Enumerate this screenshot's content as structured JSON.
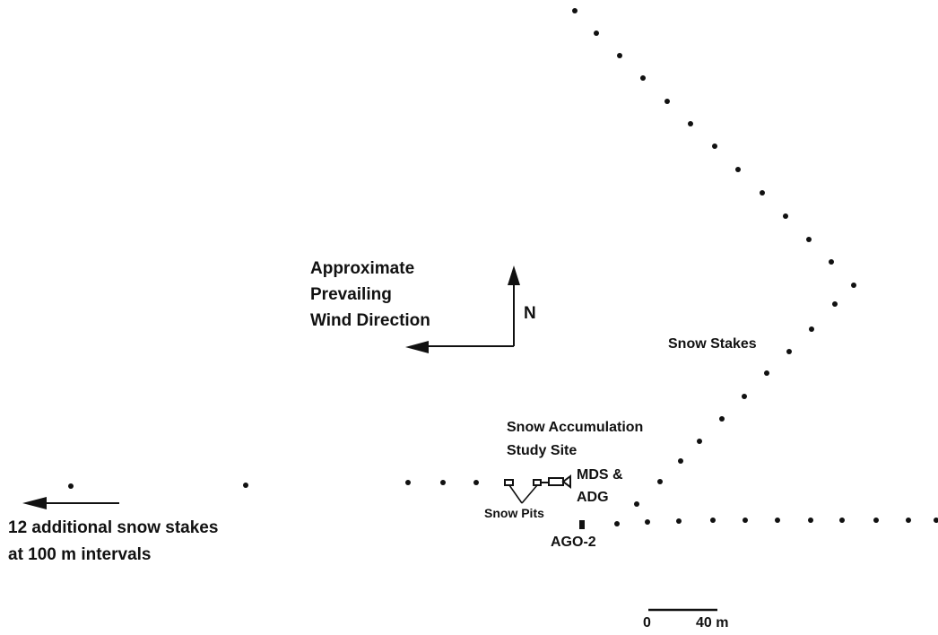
{
  "labels": {
    "wind_line1": "Approximate",
    "wind_line2": "Prevailing",
    "wind_line3": "Wind Direction",
    "north": "N",
    "snow_stakes": "Snow Stakes",
    "study_site_line1": "Snow Accumulation",
    "study_site_line2": "Study Site",
    "mds_line1": "MDS &",
    "mds_line2": "ADG",
    "snow_pits": "Snow Pits",
    "ago2": "AGO-2",
    "additional_line1": "12 additional snow stakes",
    "additional_line2": "at 100 m intervals",
    "scale_zero": "0",
    "scale_value": "40 m"
  },
  "colors": {
    "ink": "#111111",
    "background": "#ffffff"
  }
}
